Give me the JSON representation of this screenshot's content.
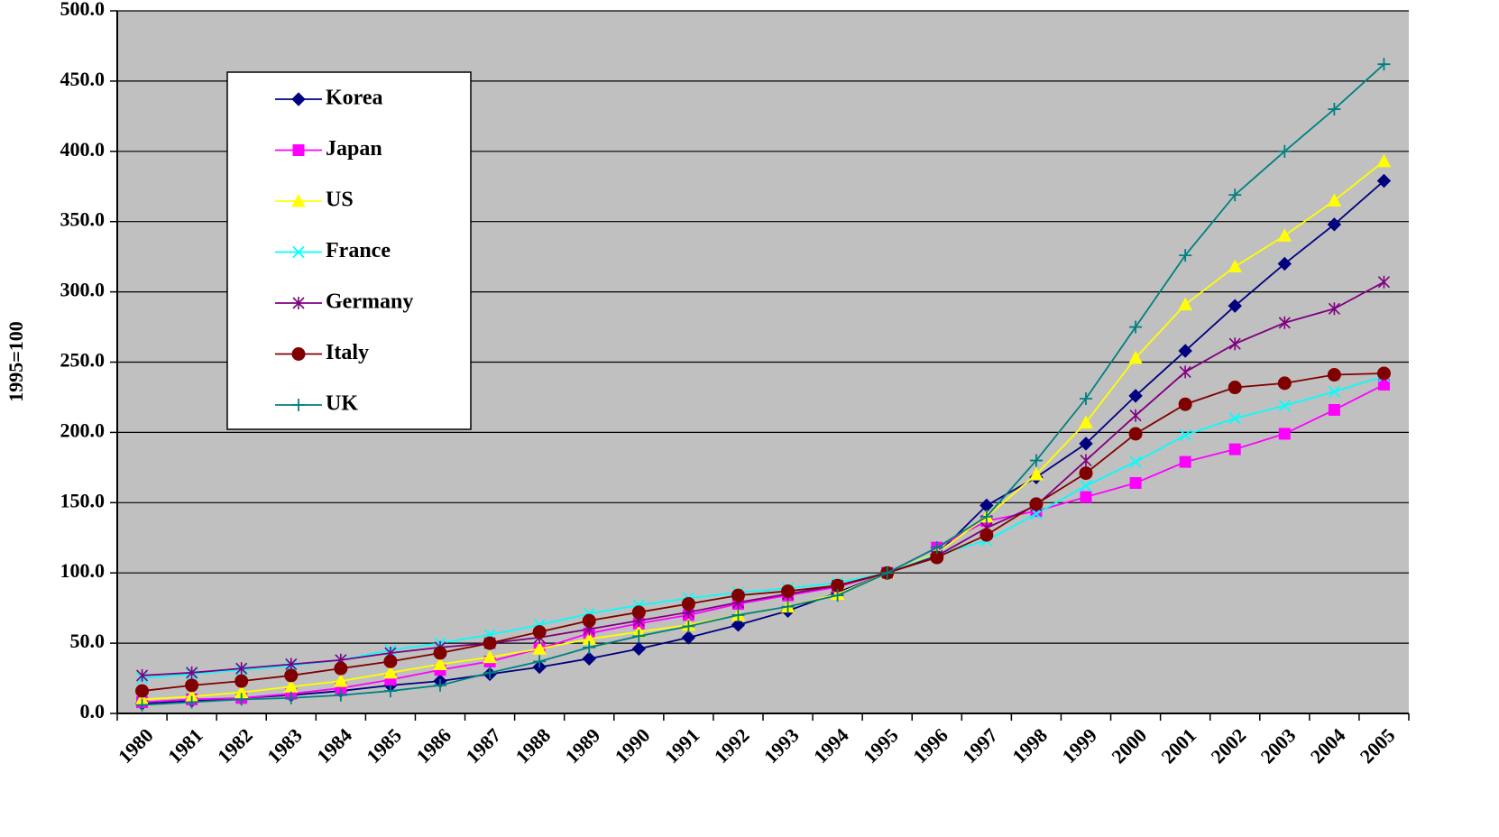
{
  "chart_data": {
    "type": "line",
    "title": "",
    "xlabel": "",
    "ylabel": "1995=100",
    "ylim": [
      0,
      500
    ],
    "yticks": [
      "0.0",
      "50.0",
      "100.0",
      "150.0",
      "200.0",
      "250.0",
      "300.0",
      "350.0",
      "400.0",
      "450.0",
      "500.0"
    ],
    "grid": true,
    "legend": "top-left",
    "background": "#c0c0c0",
    "categories": [
      "1980",
      "1981",
      "1982",
      "1983",
      "1984",
      "1985",
      "1986",
      "1987",
      "1988",
      "1989",
      "1990",
      "1991",
      "1992",
      "1993",
      "1994",
      "1995",
      "1996",
      "1997",
      "1998",
      "1999",
      "2000",
      "2001",
      "2002",
      "2003",
      "2004",
      "2005"
    ],
    "series": [
      {
        "name": "Korea",
        "color": "#000080",
        "marker": "diamond",
        "values": [
          7,
          9,
          11,
          13,
          16,
          20,
          23,
          28,
          33,
          39,
          46,
          54,
          63,
          73,
          86,
          100,
          113,
          148,
          168,
          192,
          226,
          258,
          290,
          320,
          348,
          379
        ]
      },
      {
        "name": "Japan",
        "color": "#ff00ff",
        "marker": "square",
        "values": [
          8,
          10,
          11,
          14,
          18,
          24,
          31,
          37,
          46,
          57,
          64,
          70,
          78,
          84,
          90,
          100,
          118,
          137,
          144,
          154,
          164,
          179,
          188,
          199,
          216,
          234
        ]
      },
      {
        "name": "US",
        "color": "#ffff00",
        "marker": "triangle",
        "values": [
          10,
          12,
          15,
          19,
          23,
          29,
          35,
          40,
          46,
          53,
          58,
          63,
          70,
          76,
          85,
          100,
          114,
          140,
          170,
          207,
          253,
          291,
          318,
          340,
          365,
          393
        ]
      },
      {
        "name": "France",
        "color": "#00ffff",
        "marker": "x",
        "values": [
          25,
          28,
          31,
          34,
          38,
          45,
          50,
          56,
          63,
          71,
          77,
          82,
          86,
          89,
          93,
          100,
          113,
          123,
          142,
          162,
          179,
          198,
          210,
          219,
          229,
          240
        ]
      },
      {
        "name": "Germany",
        "color": "#800080",
        "marker": "star",
        "values": [
          27,
          29,
          32,
          35,
          38,
          43,
          47,
          50,
          54,
          60,
          66,
          72,
          79,
          85,
          91,
          100,
          112,
          132,
          148,
          180,
          212,
          243,
          263,
          278,
          288,
          307
        ]
      },
      {
        "name": "Italy",
        "color": "#800000",
        "marker": "circle",
        "values": [
          16,
          20,
          23,
          27,
          32,
          37,
          43,
          50,
          58,
          66,
          72,
          78,
          84,
          87,
          91,
          100,
          111,
          127,
          149,
          171,
          199,
          220,
          232,
          235,
          241,
          242
        ]
      },
      {
        "name": "UK",
        "color": "#008080",
        "marker": "plus",
        "values": [
          6,
          8,
          10,
          11,
          13,
          16,
          20,
          29,
          37,
          47,
          55,
          62,
          70,
          76,
          84,
          100,
          118,
          140,
          180,
          224,
          275,
          326,
          369,
          400,
          430,
          462
        ]
      }
    ]
  }
}
